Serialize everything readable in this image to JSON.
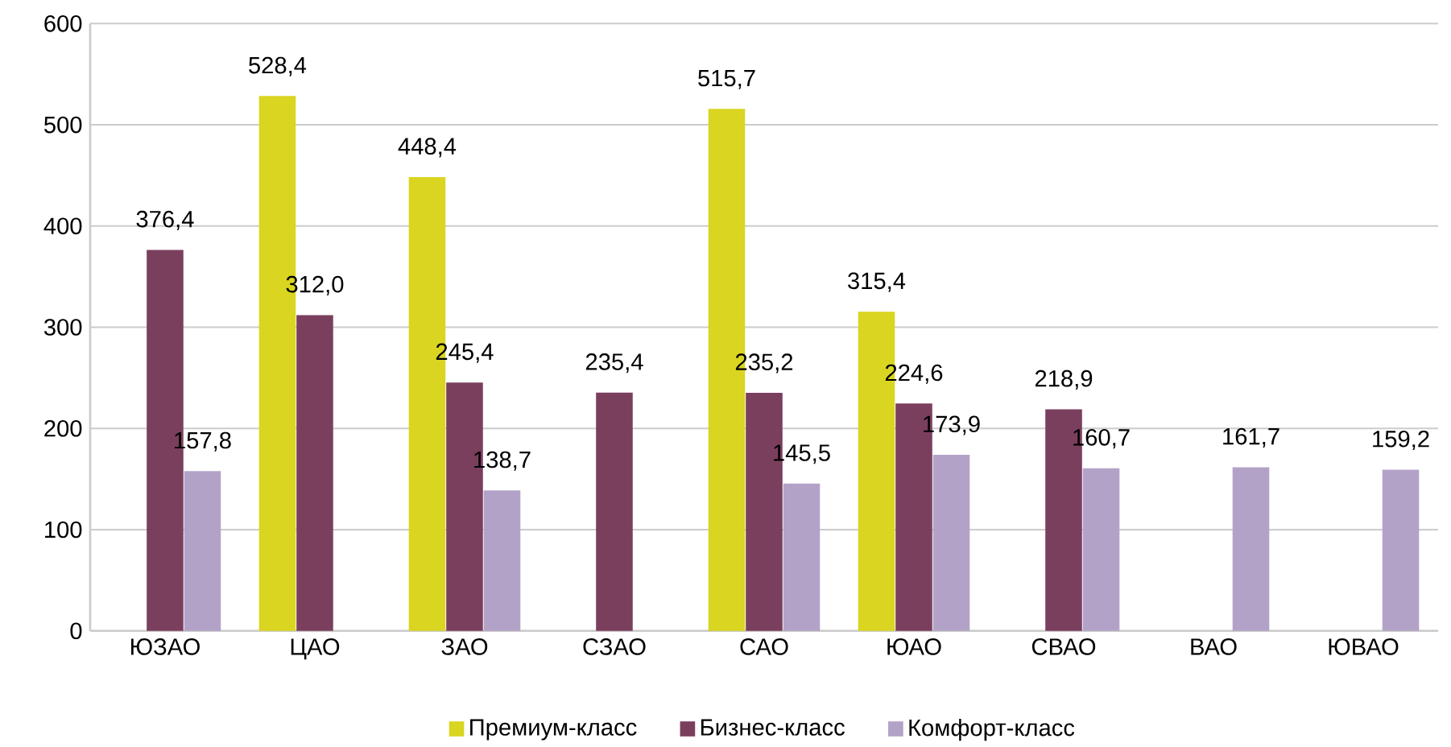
{
  "chart_data": {
    "type": "bar",
    "categories": [
      "ЮЗАО",
      "ЦАО",
      "ЗАО",
      "СЗАО",
      "САО",
      "ЮАО",
      "СВАО",
      "ВАО",
      "ЮВАО"
    ],
    "series": [
      {
        "name": "Премиум-класс",
        "color": "#d9d521",
        "values": [
          null,
          528.4,
          448.4,
          null,
          515.7,
          315.4,
          null,
          null,
          null
        ],
        "value_labels": [
          null,
          "528,4",
          "448,4",
          null,
          "515,7",
          "315,4",
          null,
          null,
          null
        ]
      },
      {
        "name": "Бизнес-класс",
        "color": "#7b3f5e",
        "values": [
          376.4,
          312.0,
          245.4,
          235.4,
          235.2,
          224.6,
          218.9,
          null,
          null
        ],
        "value_labels": [
          "376,4",
          "312,0",
          "245,4",
          "235,4",
          "235,2",
          "224,6",
          "218,9",
          null,
          null
        ]
      },
      {
        "name": "Комфорт-класс",
        "color": "#b3a2c8",
        "values": [
          157.8,
          null,
          138.7,
          null,
          145.5,
          173.9,
          160.7,
          161.7,
          159.2
        ],
        "value_labels": [
          "157,8",
          null,
          "138,7",
          null,
          "145,5",
          "173,9",
          "160,7",
          "161,7",
          "159,2"
        ]
      }
    ],
    "ylim": [
      0,
      600
    ],
    "yticks": [
      0,
      100,
      200,
      300,
      400,
      500,
      600
    ],
    "grid": "y",
    "legend": "bottom"
  }
}
